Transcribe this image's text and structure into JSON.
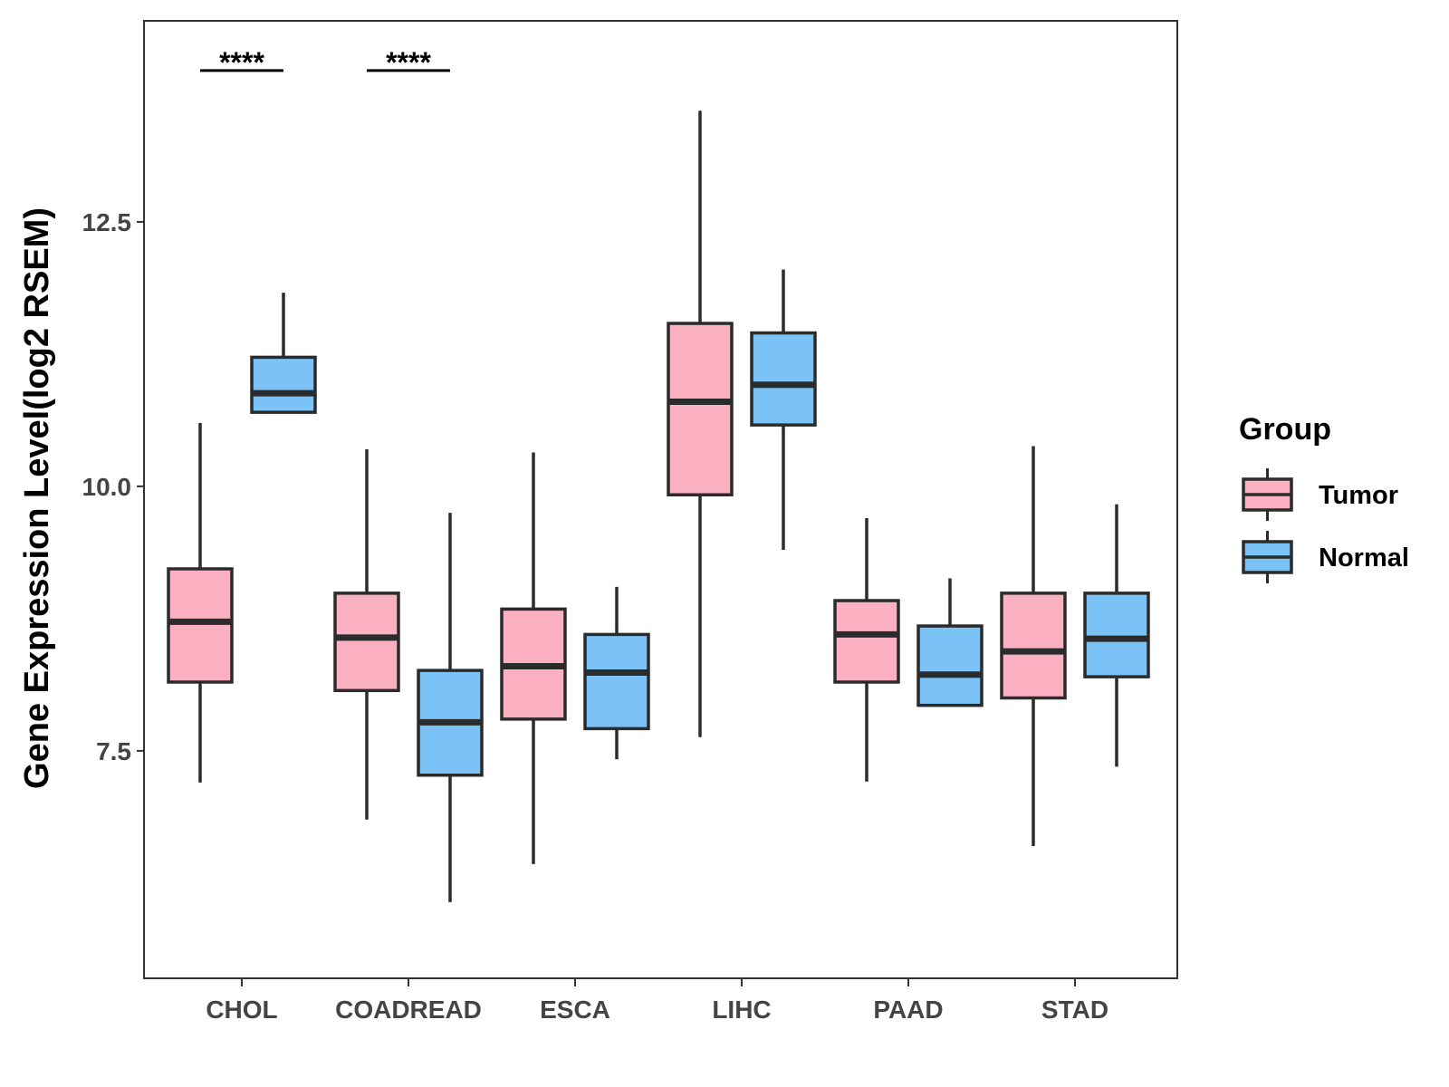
{
  "chart_data": {
    "type": "boxplot",
    "title": "",
    "xlabel": "",
    "ylabel": "Gene Expression Level(log2 RSEM)",
    "ylim": [
      5.35,
      14.4
    ],
    "yticks": [
      7.5,
      10.0,
      12.5
    ],
    "ytick_labels": [
      "7.5",
      "10.0",
      "12.5"
    ],
    "categories": [
      "CHOL",
      "COADREAD",
      "ESCA",
      "LIHC",
      "PAAD",
      "STAD"
    ],
    "legend": {
      "title": "Group",
      "position": "right",
      "entries": [
        "Tumor",
        "Normal"
      ]
    },
    "series": [
      {
        "name": "Tumor",
        "color": "#FBB1C2",
        "boxes": [
          {
            "min": 7.2,
            "q1": 8.15,
            "median": 8.72,
            "q3": 9.22,
            "max": 10.6
          },
          {
            "min": 6.85,
            "q1": 8.07,
            "median": 8.57,
            "q3": 8.99,
            "max": 10.35
          },
          {
            "min": 6.43,
            "q1": 7.8,
            "median": 8.3,
            "q3": 8.84,
            "max": 10.32
          },
          {
            "min": 7.63,
            "q1": 9.92,
            "median": 10.8,
            "q3": 11.54,
            "max": 13.55
          },
          {
            "min": 7.21,
            "q1": 8.15,
            "median": 8.6,
            "q3": 8.92,
            "max": 9.7
          },
          {
            "min": 6.6,
            "q1": 8.0,
            "median": 8.44,
            "q3": 8.99,
            "max": 10.38
          }
        ]
      },
      {
        "name": "Normal",
        "color": "#7BC3F7",
        "boxes": [
          {
            "min": 10.7,
            "q1": 10.7,
            "median": 10.88,
            "q3": 11.22,
            "max": 11.83
          },
          {
            "min": 6.07,
            "q1": 7.27,
            "median": 7.77,
            "q3": 8.26,
            "max": 9.75
          },
          {
            "min": 7.42,
            "q1": 7.71,
            "median": 8.24,
            "q3": 8.6,
            "max": 9.05
          },
          {
            "min": 9.4,
            "q1": 10.58,
            "median": 10.96,
            "q3": 11.45,
            "max": 12.05
          },
          {
            "min": 7.93,
            "q1": 7.93,
            "median": 8.22,
            "q3": 8.68,
            "max": 9.13
          },
          {
            "min": 7.35,
            "q1": 8.2,
            "median": 8.56,
            "q3": 8.99,
            "max": 9.83
          }
        ]
      }
    ],
    "annotations": [
      {
        "category": "CHOL",
        "label": "****",
        "y": 13.93
      },
      {
        "category": "COADREAD",
        "label": "****",
        "y": 13.93
      }
    ]
  }
}
